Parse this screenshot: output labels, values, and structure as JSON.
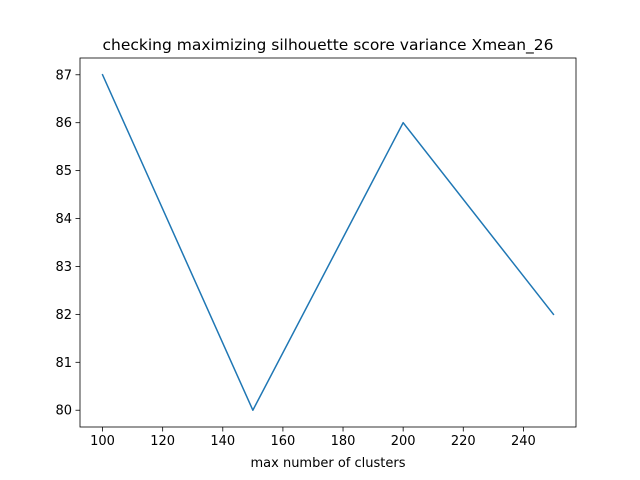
{
  "chart_data": {
    "type": "line",
    "title": "checking maximizing silhouette score variance Xmean_26",
    "xlabel": "max number of clusters",
    "ylabel": "",
    "x": [
      100,
      150,
      200,
      250
    ],
    "series": [
      {
        "values": [
          87,
          80,
          86,
          82
        ],
        "color": "#1f77b4"
      }
    ],
    "xlim": [
      92.5,
      257.5
    ],
    "ylim": [
      79.65,
      87.35
    ],
    "xticks": [
      100,
      120,
      140,
      160,
      180,
      200,
      220,
      240
    ],
    "yticks": [
      80,
      81,
      82,
      83,
      84,
      85,
      86,
      87
    ],
    "grid": false,
    "legend": "none"
  }
}
